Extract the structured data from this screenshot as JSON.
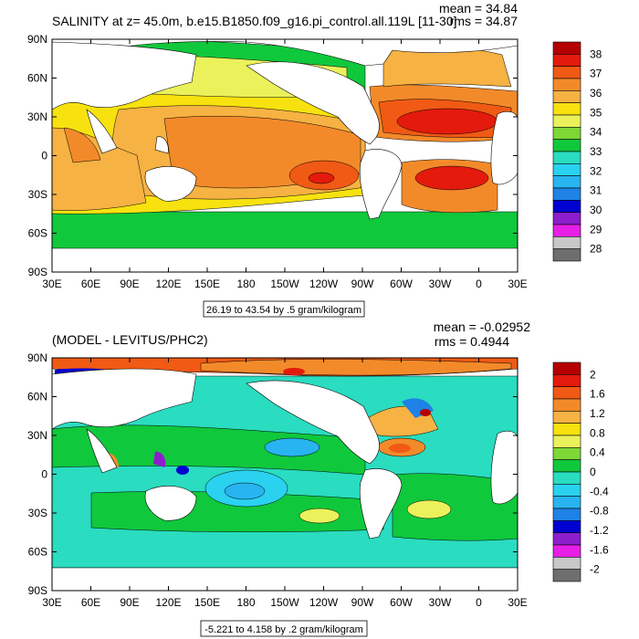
{
  "chart_data": [
    {
      "type": "heatmap",
      "title": "SALINITY at z=  45.0m, b.e15.B1850.f09_g16.pi_control.all.119L [11-30]",
      "stats": {
        "mean_label": "mean = 34.84",
        "rms_label": "rms = 34.87"
      },
      "x_ticks": [
        "30E",
        "60E",
        "90E",
        "120E",
        "150E",
        "180",
        "150W",
        "120W",
        "90W",
        "60W",
        "30W",
        "0",
        "30E"
      ],
      "y_ticks": [
        "90N",
        "60N",
        "30N",
        "0",
        "30S",
        "60S",
        "90S"
      ],
      "xlim": [
        30,
        390
      ],
      "ylim": [
        -90,
        90
      ],
      "colorbar": {
        "labels": [
          "38",
          "37",
          "36",
          "35",
          "34",
          "33",
          "32",
          "31",
          "30",
          "29",
          "28"
        ],
        "colors": [
          "#b40000",
          "#e41a0c",
          "#f05a14",
          "#f38a2a",
          "#f6b243",
          "#f7e20f",
          "#ebf15a",
          "#7dd836",
          "#10c83c",
          "#2adcc0",
          "#2ad2f0",
          "#28b4f0",
          "#1e82e6",
          "#0000d0",
          "#8c1ecc",
          "#e61ee6",
          "#c8c8c8",
          "#6e6e6e"
        ]
      },
      "range_label": "26.19 to 43.54 by .5 gram/kilogram",
      "value_range": [
        26.19,
        43.54
      ],
      "contour_interval": 0.5,
      "units": "gram/kilogram"
    },
    {
      "type": "heatmap",
      "title": "(MODEL - LEVITUS/PHC2)",
      "stats": {
        "mean_label": "mean = -0.02952",
        "rms_label": "rms = 0.4944"
      },
      "x_ticks": [
        "30E",
        "60E",
        "90E",
        "120E",
        "150E",
        "180",
        "150W",
        "120W",
        "90W",
        "60W",
        "30W",
        "0",
        "30E"
      ],
      "y_ticks": [
        "90N",
        "60N",
        "30N",
        "0",
        "30S",
        "60S",
        "90S"
      ],
      "xlim": [
        30,
        390
      ],
      "ylim": [
        -90,
        90
      ],
      "colorbar": {
        "labels": [
          "2",
          "1.6",
          "1.2",
          "0.8",
          "0.4",
          "0",
          "-0.4",
          "-0.8",
          "-1.2",
          "-1.6",
          "-2"
        ],
        "colors": [
          "#b40000",
          "#e41a0c",
          "#f05a14",
          "#f38a2a",
          "#f6b243",
          "#f7e20f",
          "#ebf15a",
          "#7dd836",
          "#10c83c",
          "#2adcc0",
          "#2ad2f0",
          "#28b4f0",
          "#1e82e6",
          "#0000d0",
          "#8c1ecc",
          "#e61ee6",
          "#c8c8c8",
          "#6e6e6e"
        ]
      },
      "range_label": "-5.221 to 4.158 by .2 gram/kilogram",
      "value_range": [
        -5.221,
        4.158
      ],
      "contour_interval": 0.2,
      "units": "gram/kilogram"
    }
  ]
}
